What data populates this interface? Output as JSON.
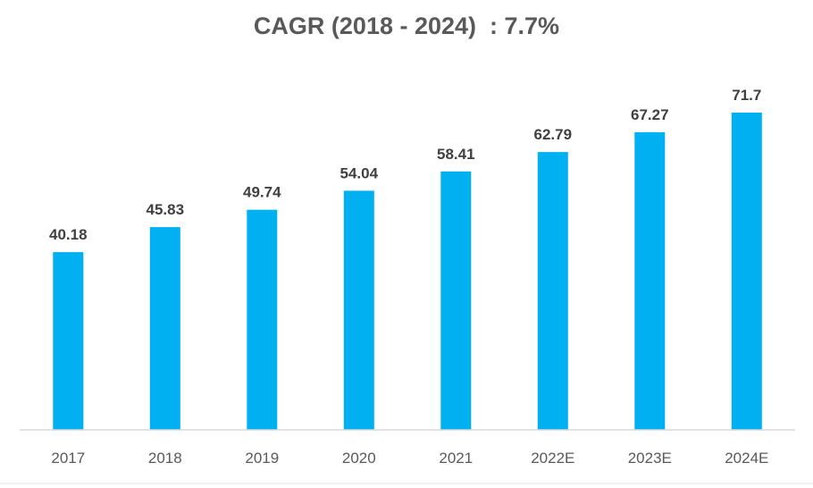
{
  "chart_data": {
    "type": "bar",
    "title": "CAGR (2018 - 2024)  : 7.7%",
    "categories": [
      "2017",
      "2018",
      "2019",
      "2020",
      "2021",
      "2022E",
      "2023E",
      "2024E"
    ],
    "values": [
      40.18,
      45.83,
      49.74,
      54.04,
      58.41,
      62.79,
      67.27,
      71.7
    ],
    "data_labels": [
      "40.18",
      "45.83",
      "49.74",
      "54.04",
      "58.41",
      "62.79",
      "67.27",
      "71.7"
    ],
    "xlabel": "",
    "ylabel": "",
    "ylim": [
      0,
      75
    ],
    "grid": false,
    "legend": "none",
    "bar_color": "#00b0f0"
  }
}
